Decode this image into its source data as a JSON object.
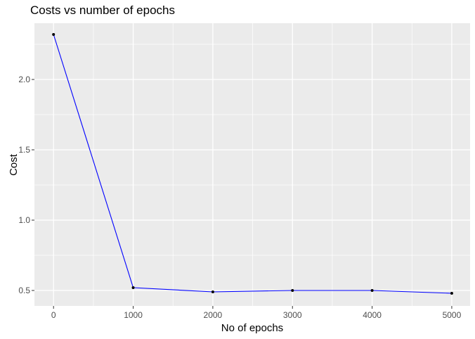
{
  "chart_data": {
    "type": "line",
    "title": "Costs vs number of epochs",
    "xlabel": "No of epochs",
    "ylabel": "Cost",
    "x": [
      0,
      1000,
      2000,
      3000,
      4000,
      5000
    ],
    "y": [
      2.32,
      0.52,
      0.49,
      0.5,
      0.5,
      0.48
    ],
    "series_name": "Cost",
    "xlim": [
      -240,
      5230
    ],
    "ylim": [
      0.39,
      2.4
    ],
    "x_ticks": [
      0,
      1000,
      2000,
      3000,
      4000,
      5000
    ],
    "x_tick_labels": [
      "0",
      "1000",
      "2000",
      "3000",
      "4000",
      "5000"
    ],
    "x_minor_ticks": [
      500,
      1500,
      2500,
      3500,
      4500
    ],
    "y_ticks": [
      0.5,
      1.0,
      1.5,
      2.0
    ],
    "y_tick_labels": [
      "0.5",
      "1.0",
      "1.5",
      "2.0"
    ],
    "y_minor_ticks": [
      0.75,
      1.25,
      1.75,
      2.25
    ],
    "grid": true,
    "legend": "none",
    "style": "ggplot2",
    "point_radius": 2,
    "line_width": 1.1,
    "colors": {
      "figure_bg": "#ffffff",
      "panel_bg": "#ebebeb",
      "grid_major": "#ffffff",
      "grid_minor": "#ffffff",
      "line": "#0000ff",
      "point": "#000000",
      "tick_mark": "#333333",
      "tick_label": "#4d4d4d",
      "text": "#000000"
    }
  }
}
